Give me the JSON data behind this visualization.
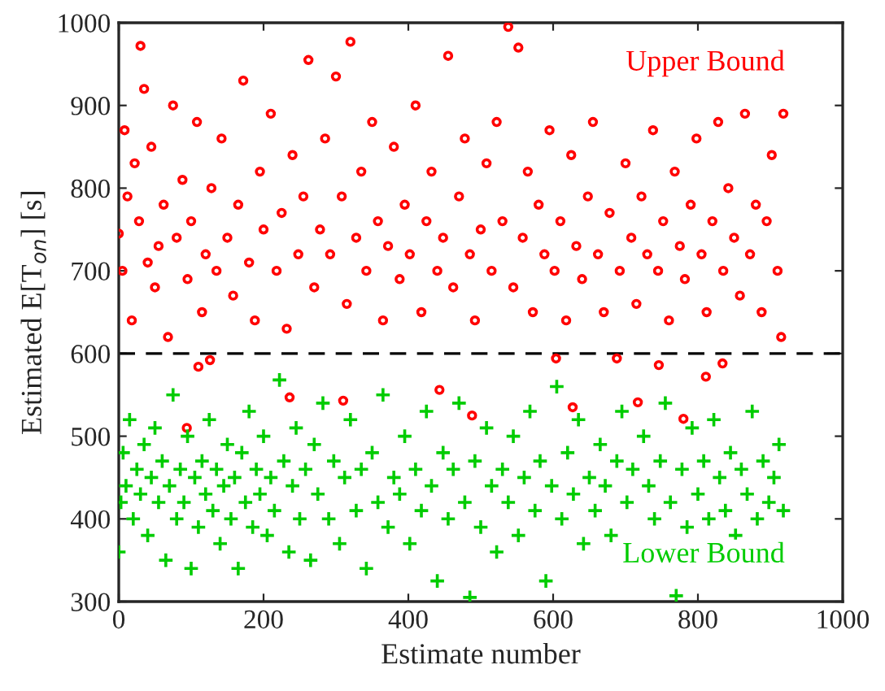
{
  "chart_data": {
    "type": "scatter",
    "xlabel": "Estimate number",
    "ylabel": "Estimated E[T$_{on}$] [s]",
    "xlim": [
      0,
      1000
    ],
    "ylim": [
      300,
      1000
    ],
    "xticks": [
      0,
      200,
      400,
      600,
      800,
      1000
    ],
    "yticks": [
      300,
      400,
      500,
      600,
      700,
      800,
      900,
      1000
    ],
    "grid": false,
    "legend": false,
    "ref_lines": [
      {
        "axis": "y",
        "value": 600,
        "color": "#000000",
        "line_style": "dashed"
      }
    ],
    "series": [
      {
        "name": "Upper Bound",
        "color": "#ff0000",
        "marker": "circle",
        "x": [
          0,
          5,
          8,
          12,
          18,
          22,
          28,
          30,
          35,
          40,
          45,
          50,
          55,
          62,
          68,
          75,
          80,
          88,
          95,
          100,
          108,
          115,
          120,
          128,
          135,
          142,
          150,
          158,
          165,
          172,
          180,
          188,
          195,
          200,
          210,
          218,
          225,
          232,
          240,
          248,
          255,
          262,
          270,
          278,
          285,
          292,
          300,
          308,
          315,
          320,
          328,
          335,
          342,
          350,
          358,
          365,
          372,
          380,
          388,
          395,
          402,
          410,
          418,
          425,
          432,
          440,
          448,
          455,
          462,
          470,
          478,
          485,
          492,
          500,
          508,
          515,
          522,
          530,
          538,
          545,
          552,
          558,
          565,
          572,
          580,
          588,
          595,
          602,
          610,
          618,
          625,
          632,
          640,
          648,
          655,
          662,
          670,
          678,
          692,
          700,
          708,
          715,
          722,
          730,
          738,
          745,
          752,
          760,
          768,
          775,
          782,
          790,
          798,
          805,
          812,
          820,
          828,
          835,
          842,
          850,
          858,
          865,
          872,
          880,
          888,
          895,
          902,
          910,
          915,
          918,
          110,
          126,
          236,
          310,
          94,
          443,
          488,
          604,
          688,
          746,
          834,
          811,
          627,
          717,
          780
        ],
        "values": [
          745,
          700,
          870,
          790,
          640,
          830,
          760,
          972,
          920,
          710,
          850,
          680,
          730,
          780,
          620,
          900,
          740,
          810,
          690,
          760,
          880,
          650,
          720,
          800,
          700,
          860,
          740,
          670,
          780,
          930,
          710,
          640,
          820,
          750,
          890,
          700,
          770,
          630,
          840,
          720,
          790,
          955,
          680,
          750,
          860,
          720,
          935,
          790,
          660,
          977,
          740,
          820,
          700,
          880,
          760,
          640,
          730,
          850,
          690,
          780,
          720,
          900,
          650,
          760,
          820,
          700,
          740,
          960,
          680,
          790,
          860,
          720,
          640,
          750,
          830,
          700,
          880,
          760,
          995,
          680,
          970,
          740,
          820,
          650,
          780,
          720,
          870,
          700,
          760,
          640,
          840,
          730,
          690,
          790,
          880,
          720,
          650,
          770,
          700,
          830,
          740,
          660,
          790,
          720,
          870,
          700,
          760,
          640,
          820,
          730,
          690,
          780,
          860,
          720,
          650,
          760,
          880,
          700,
          800,
          740,
          670,
          890,
          720,
          780,
          650,
          760,
          840,
          700,
          620,
          890,
          584,
          592,
          547,
          543,
          510,
          556,
          525,
          594,
          594,
          586,
          588,
          572,
          535,
          541,
          521
        ]
      },
      {
        "name": "Lower Bound",
        "color": "#00cc00",
        "marker": "cross",
        "x": [
          0,
          3,
          6,
          10,
          15,
          20,
          25,
          30,
          35,
          40,
          45,
          50,
          55,
          60,
          65,
          70,
          75,
          80,
          85,
          90,
          95,
          100,
          105,
          110,
          115,
          120,
          125,
          130,
          135,
          140,
          145,
          150,
          155,
          160,
          165,
          170,
          175,
          180,
          185,
          190,
          195,
          200,
          205,
          210,
          215,
          222,
          228,
          235,
          240,
          245,
          250,
          258,
          265,
          270,
          275,
          282,
          290,
          297,
          305,
          312,
          320,
          328,
          335,
          342,
          350,
          358,
          365,
          372,
          380,
          388,
          395,
          402,
          410,
          418,
          425,
          432,
          440,
          448,
          455,
          462,
          470,
          478,
          485,
          492,
          500,
          508,
          515,
          522,
          530,
          538,
          545,
          552,
          560,
          568,
          575,
          582,
          590,
          598,
          605,
          612,
          620,
          628,
          635,
          642,
          650,
          658,
          665,
          672,
          680,
          688,
          695,
          702,
          710,
          725,
          732,
          740,
          748,
          755,
          762,
          770,
          778,
          785,
          792,
          800,
          808,
          815,
          822,
          830,
          838,
          845,
          852,
          860,
          868,
          875,
          882,
          890,
          898,
          905,
          912,
          918
        ],
        "values": [
          360,
          420,
          480,
          440,
          520,
          400,
          460,
          430,
          490,
          380,
          450,
          510,
          420,
          470,
          350,
          440,
          550,
          400,
          460,
          420,
          500,
          340,
          450,
          390,
          470,
          430,
          520,
          410,
          460,
          370,
          440,
          490,
          400,
          450,
          340,
          480,
          420,
          530,
          390,
          460,
          430,
          500,
          380,
          450,
          410,
          568,
          470,
          360,
          440,
          510,
          400,
          460,
          350,
          490,
          430,
          540,
          400,
          470,
          370,
          450,
          520,
          410,
          460,
          340,
          480,
          420,
          550,
          390,
          450,
          430,
          500,
          370,
          460,
          410,
          530,
          440,
          325,
          480,
          400,
          460,
          540,
          420,
          305,
          470,
          390,
          510,
          440,
          360,
          460,
          420,
          500,
          380,
          450,
          530,
          410,
          470,
          325,
          440,
          560,
          400,
          480,
          430,
          520,
          370,
          450,
          410,
          490,
          440,
          380,
          470,
          530,
          420,
          460,
          500,
          440,
          400,
          470,
          540,
          420,
          307,
          460,
          390,
          510,
          430,
          470,
          400,
          520,
          450,
          410,
          480,
          380,
          460,
          430,
          530,
          400,
          470,
          420,
          450,
          490,
          410
        ]
      }
    ]
  }
}
